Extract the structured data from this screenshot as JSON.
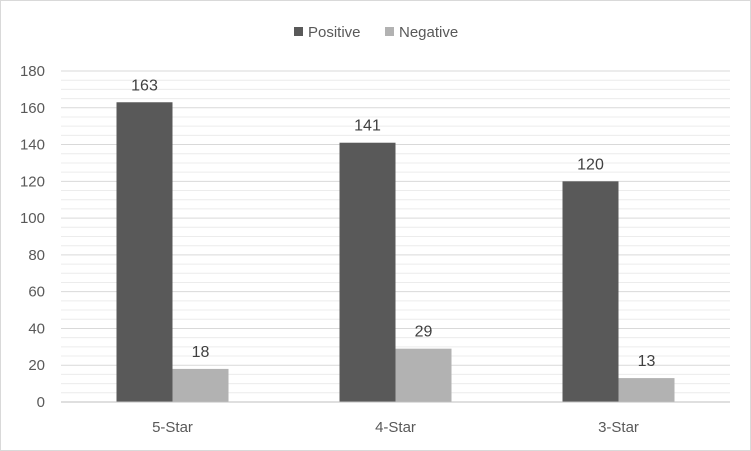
{
  "chart_data": {
    "type": "bar",
    "categories": [
      "5-Star",
      "4-Star",
      "3-Star"
    ],
    "series": [
      {
        "name": "Positive",
        "values": [
          163,
          141,
          120
        ],
        "color": "#595959"
      },
      {
        "name": "Negative",
        "values": [
          18,
          29,
          13
        ],
        "color": "#b2b2b2"
      }
    ],
    "yticks": [
      "0",
      "20",
      "40",
      "60",
      "80",
      "100",
      "120",
      "140",
      "160",
      "180"
    ],
    "ylim": [
      0,
      180
    ],
    "legend_position": "top-center",
    "grid": true,
    "gridline_color": "#d9d9d9",
    "axis_color": "#bfbfbf"
  }
}
